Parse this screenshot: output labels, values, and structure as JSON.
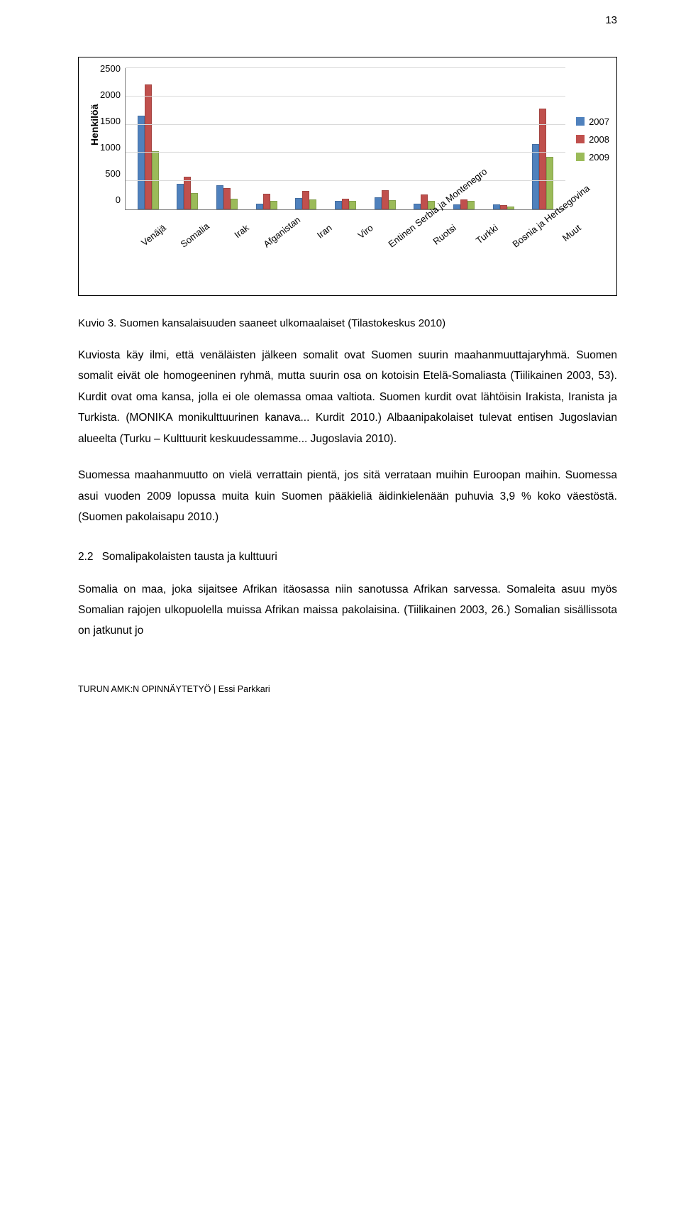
{
  "page_number": "13",
  "chart": {
    "type": "bar",
    "y_label": "Henkilöä",
    "y_max": 2500,
    "y_ticks": [
      2500,
      2000,
      1500,
      1000,
      500,
      0
    ],
    "categories": [
      "Venäjä",
      "Somalia",
      "Irak",
      "Afganistan",
      "Iran",
      "Viro",
      "Entinen Serbia ja Montenegro",
      "Ruotsi",
      "Turkki",
      "Bosnia ja Hertsegovina",
      "Muut"
    ],
    "series": [
      {
        "label": "2007",
        "color": "#4f81bd",
        "values": [
          1650,
          450,
          430,
          95,
          205,
          155,
          210,
          105,
          85,
          85,
          1150
        ]
      },
      {
        "label": "2008",
        "color": "#c0504d",
        "values": [
          2200,
          570,
          380,
          270,
          330,
          190,
          340,
          260,
          180,
          80,
          1770
        ]
      },
      {
        "label": "2009",
        "color": "#9bbb59",
        "values": [
          1020,
          290,
          190,
          150,
          170,
          150,
          160,
          148,
          145,
          55,
          920
        ]
      }
    ]
  },
  "caption": "Kuvio 3. Suomen kansalaisuuden saaneet ulkomaalaiset (Tilastokeskus 2010)",
  "para1": "Kuviosta käy ilmi, että venäläisten jälkeen somalit ovat Suomen suurin maahanmuuttajaryhmä. Suomen somalit eivät ole homogeeninen ryhmä, mutta suurin osa on kotoisin Etelä-Somaliasta (Tiilikainen 2003, 53). Kurdit ovat oma kansa, jolla ei ole olemassa omaa valtiota. Suomen kurdit ovat lähtöisin Irakista, Iranista ja Turkista. (MONIKA monikulttuurinen kanava... Kurdit 2010.) Albaanipakolaiset tulevat entisen Jugoslavian alueelta (Turku – Kulttuurit keskuudessamme... Jugoslavia 2010).",
  "para2": "Suomessa maahanmuutto on vielä verrattain pientä, jos sitä verrataan muihin Euroopan maihin. Suomessa asui vuoden 2009 lopussa muita kuin Suomen pääkieliä äidinkielenään puhuvia 3,9 % koko väestöstä. (Suomen pakolaisapu 2010.)",
  "section": {
    "num": "2.2",
    "title": "Somalipakolaisten tausta ja kulttuuri"
  },
  "para3": "Somalia on maa, joka sijaitsee Afrikan itäosassa niin sanotussa Afrikan sarvessa. Somaleita asuu myös Somalian rajojen ulkopuolella muissa Afrikan maissa pakolaisina. (Tiilikainen 2003, 26.) Somalian sisällissota on jatkunut jo",
  "footer": "TURUN AMK:N OPINNÄYTETYÖ | Essi Parkkari"
}
